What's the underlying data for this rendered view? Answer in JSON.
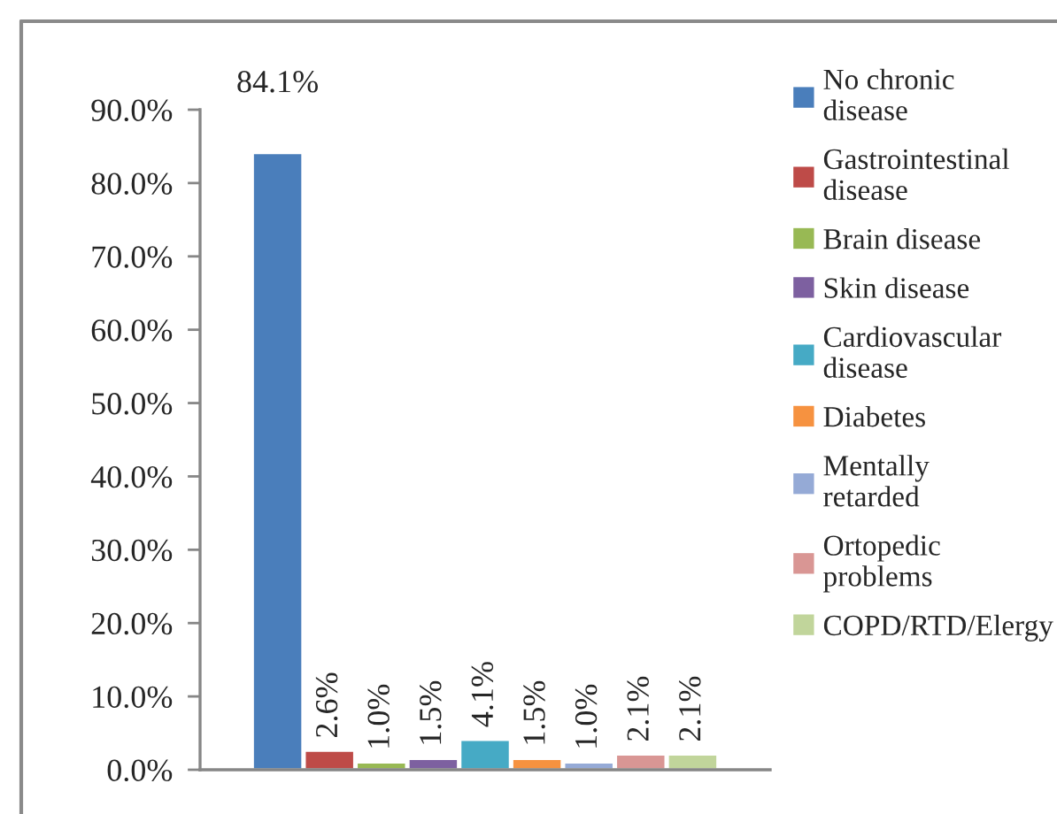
{
  "chart_data": {
    "type": "bar",
    "categories": [
      null
    ],
    "series": [
      {
        "name": "No chronic\ndisease",
        "color": "#4a7ebb",
        "values": [
          84.1
        ],
        "value_labels": [
          "84.1%"
        ]
      },
      {
        "name": "Gastrointestinal\ndisease",
        "color": "#be4b48",
        "values": [
          2.6
        ],
        "value_labels": [
          "2.6%"
        ]
      },
      {
        "name": "Brain disease",
        "color": "#98b954",
        "values": [
          1.0
        ],
        "value_labels": [
          "1.0%"
        ]
      },
      {
        "name": "Skin disease",
        "color": "#7d60a0",
        "values": [
          1.5
        ],
        "value_labels": [
          "1.5%"
        ]
      },
      {
        "name": "Cardiovascular\ndisease",
        "color": "#46aac5",
        "values": [
          4.1
        ],
        "value_labels": [
          "4.1%"
        ]
      },
      {
        "name": "Diabetes",
        "color": "#f69240",
        "values": [
          1.5
        ],
        "value_labels": [
          "1.5%"
        ]
      },
      {
        "name": "Mentally\nretarded",
        "color": "#95aad6",
        "values": [
          1.0
        ],
        "value_labels": [
          "1.0%"
        ]
      },
      {
        "name": "Ortopedic\nproblems",
        "color": "#d99694",
        "values": [
          2.1
        ],
        "value_labels": [
          "2.1%"
        ]
      },
      {
        "name": "COPD/RTD/Elergy",
        "color": "#c1d59b",
        "values": [
          2.1
        ],
        "value_labels": [
          "2.1%"
        ]
      }
    ],
    "ylim": [
      0,
      90
    ],
    "yticks": [
      {
        "value": 0,
        "label": "0.0%"
      },
      {
        "value": 10,
        "label": "10.0%"
      },
      {
        "value": 20,
        "label": "20.0%"
      },
      {
        "value": 30,
        "label": "30.0%"
      },
      {
        "value": 40,
        "label": "40.0%"
      },
      {
        "value": 50,
        "label": "50.0%"
      },
      {
        "value": 60,
        "label": "60.0%"
      },
      {
        "value": 70,
        "label": "70.0%"
      },
      {
        "value": 80,
        "label": "80.0%"
      },
      {
        "value": 90,
        "label": "90.0%"
      }
    ],
    "legend": "right"
  }
}
